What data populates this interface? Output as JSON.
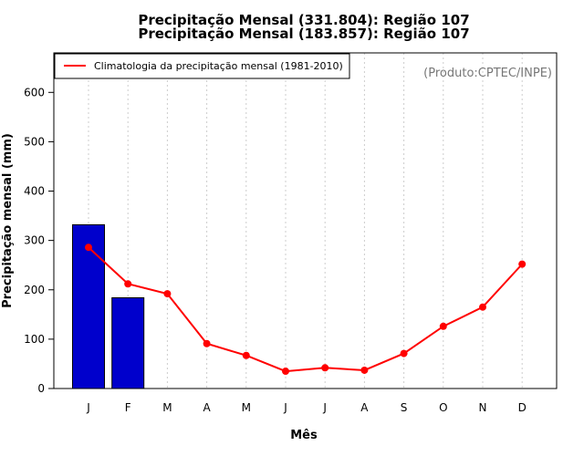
{
  "chart_data": {
    "type": "bar+line",
    "title_lines": [
      "Precipitação Mensal (331.804): Região 107",
      "Precipitação Mensal (183.857): Região 107"
    ],
    "xlabel": "Mês",
    "ylabel": "Precipitação mensal (mm)",
    "categories": [
      "J",
      "F",
      "M",
      "A",
      "M",
      "J",
      "J",
      "A",
      "S",
      "O",
      "N",
      "D"
    ],
    "ylim": [
      0,
      680
    ],
    "yticks": [
      0,
      100,
      200,
      300,
      400,
      500,
      600
    ],
    "bars": {
      "name": "Precipitação mensal",
      "values": [
        331.804,
        183.857
      ],
      "color": "#0000cc"
    },
    "series": [
      {
        "name": "Climatologia da precipitação mensal (1981-2010)",
        "values": [
          286,
          212,
          192,
          91,
          67,
          35,
          42,
          37,
          71,
          126,
          165,
          252
        ],
        "color": "#ff0000"
      }
    ],
    "legend": {
      "position": "top-left",
      "label": "Climatologia da precipitação mensal (1981-2010)"
    },
    "credit": "(Produto:CPTEC/INPE)",
    "grid": {
      "x": true,
      "y": false
    }
  }
}
